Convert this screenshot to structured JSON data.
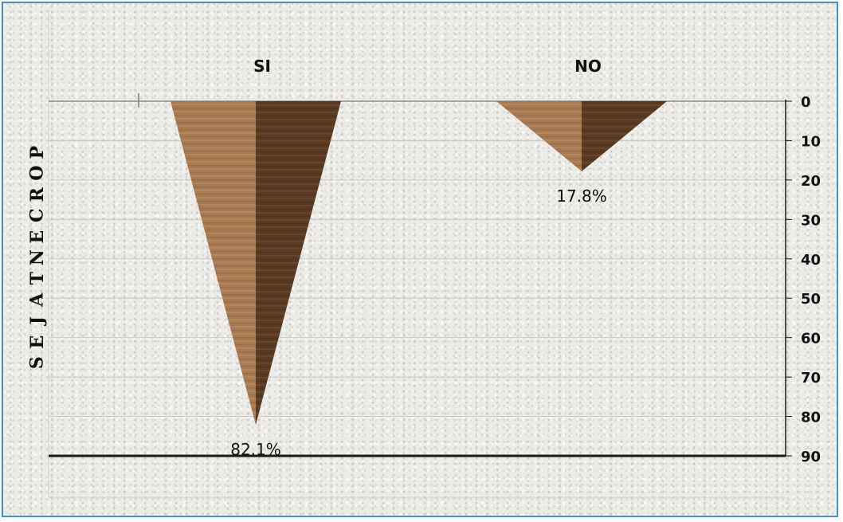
{
  "chart_data": {
    "type": "bar",
    "bar_shape": "inverted-cone",
    "categories": [
      "SI",
      "NO"
    ],
    "series": [
      {
        "values": [
          82.1,
          17.8
        ],
        "labels": [
          "82.1%",
          "17.8%"
        ]
      }
    ],
    "ylabel": "PORCENTAJES",
    "ylim": [
      0,
      90
    ],
    "y_ticks": [
      "0",
      "10",
      "20",
      "30",
      "40",
      "50",
      "60",
      "70",
      "80",
      "90"
    ],
    "y_axis_side": "right",
    "y_axis_inverted": true,
    "category_labels_position": "top",
    "grid": true,
    "legend": "none",
    "colors": {
      "light": "#a87a52",
      "dark": "#5a3a22",
      "grid": "#c9c9c9",
      "axis": "#1a1a1a",
      "border": "#4a8fb6"
    }
  }
}
